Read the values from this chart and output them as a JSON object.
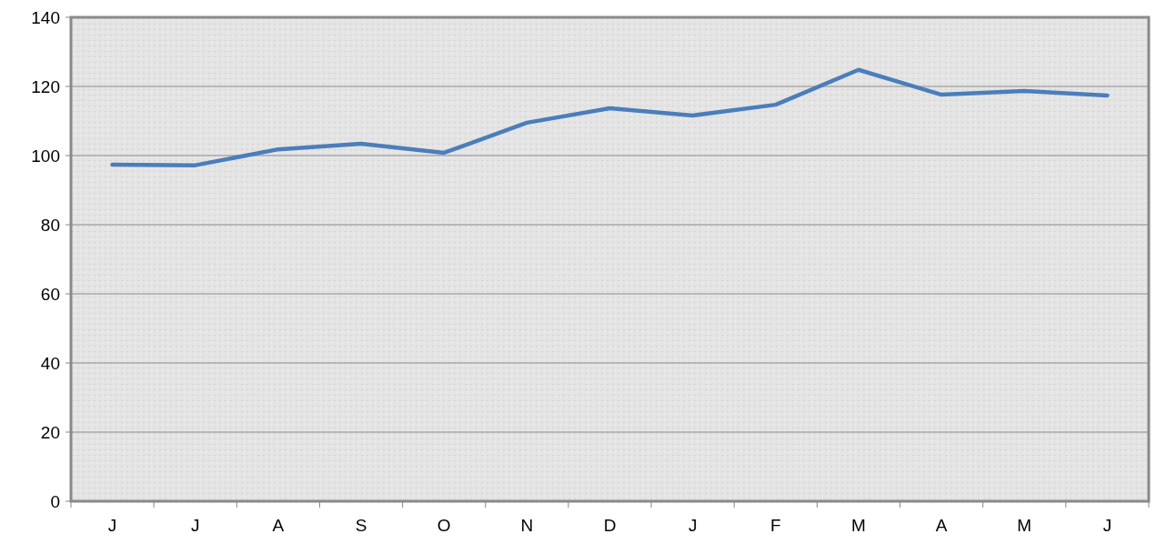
{
  "chart_data": {
    "type": "line",
    "categories": [
      "J",
      "J",
      "A",
      "S",
      "O",
      "N",
      "D",
      "J",
      "F",
      "M",
      "A",
      "M",
      "J"
    ],
    "series": [
      {
        "color": "#4a7ebb",
        "values": [
          97.4,
          97.2,
          101.8,
          103.4,
          100.8,
          109.5,
          113.7,
          111.6,
          114.7,
          124.8,
          117.6,
          118.7,
          117.4
        ]
      }
    ],
    "ylim": [
      0,
      140
    ],
    "yticks": [
      0,
      20,
      40,
      60,
      80,
      100,
      120,
      140
    ],
    "grid": "y",
    "marker": "none",
    "line_style": "solid"
  }
}
